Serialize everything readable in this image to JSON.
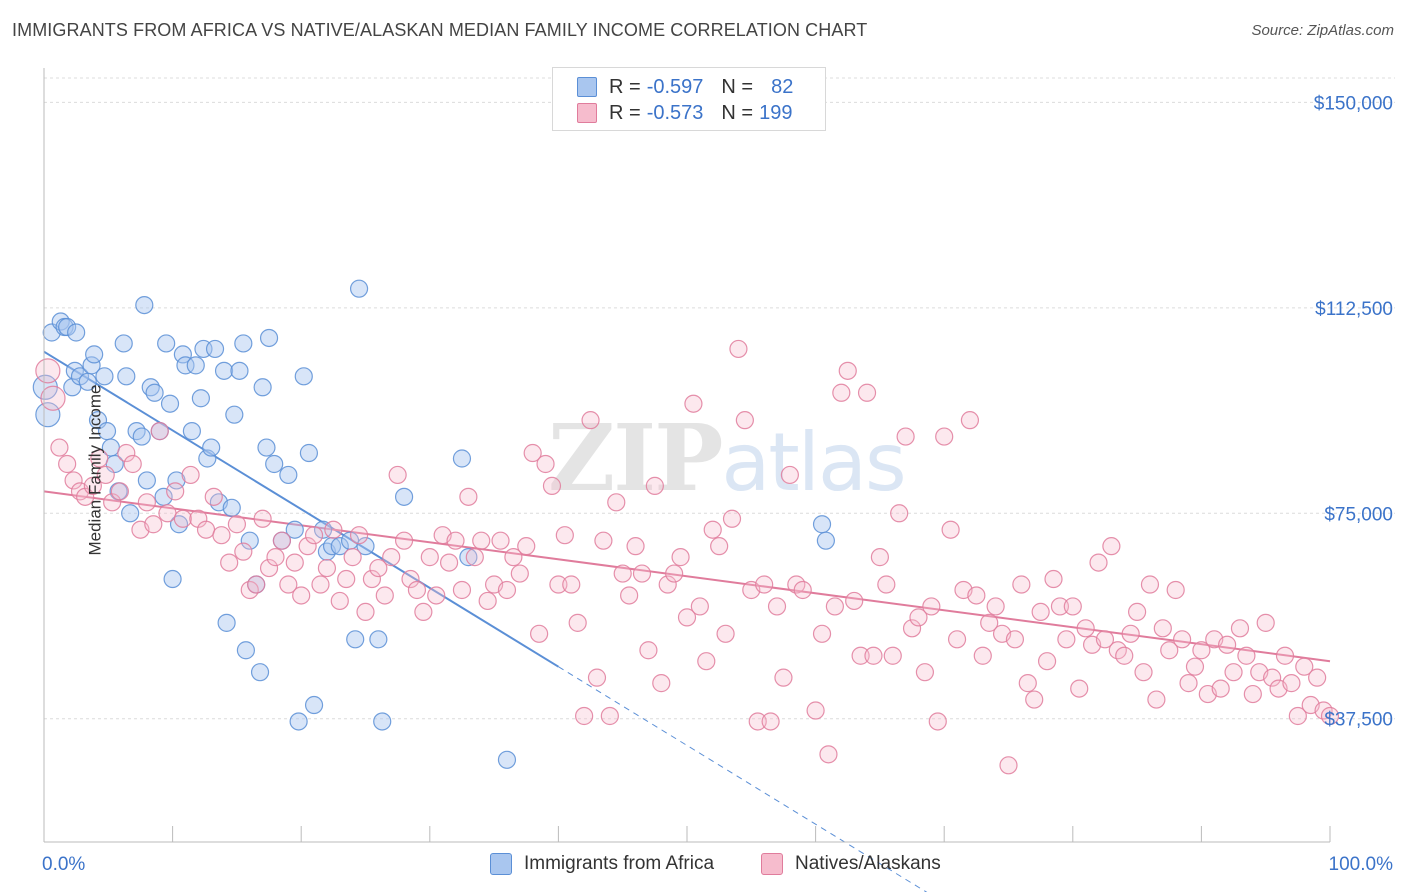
{
  "title": "IMMIGRANTS FROM AFRICA VS NATIVE/ALASKAN MEDIAN FAMILY INCOME CORRELATION CHART",
  "source": "Source: ZipAtlas.com",
  "watermark": "ZIPatlas",
  "legend": {
    "r_label": "R =",
    "n_label": "N =",
    "series": [
      {
        "r": "-0.597",
        "n": "82",
        "color": "#a9c6ef",
        "edge": "#5b8fd6"
      },
      {
        "r": "-0.573",
        "n": "199",
        "color": "#f6bccd",
        "edge": "#e07c9c"
      }
    ]
  },
  "bottom_legend": [
    {
      "label": "Immigrants from Africa",
      "color": "#a9c6ef",
      "edge": "#5b8fd6"
    },
    {
      "label": "Natives/Alaskans",
      "color": "#f6bccd",
      "edge": "#e07c9c"
    }
  ],
  "chart_data": {
    "type": "scatter",
    "xlabel": "",
    "ylabel": "Median Family Income",
    "xlim": [
      0,
      100
    ],
    "ylim": [
      15000,
      155000
    ],
    "x_tick_labels": [
      "0.0%",
      "100.0%"
    ],
    "y_ticks": [
      37500,
      75000,
      112500,
      150000
    ],
    "y_tick_labels": [
      "$37,500",
      "$75,000",
      "$112,500",
      "$150,000"
    ],
    "grid": true,
    "series": [
      {
        "name": "Immigrants from Africa",
        "color": "#5b8fd6",
        "trend": {
          "x0": 0,
          "y0": 104500,
          "x1": 40,
          "y1": 47000,
          "dash_to_x": 74
        },
        "points": [
          [
            0.3,
            93
          ],
          [
            0.6,
            108
          ],
          [
            1.3,
            110
          ],
          [
            1.6,
            109
          ],
          [
            1.8,
            109
          ],
          [
            2.2,
            98
          ],
          [
            2.4,
            101
          ],
          [
            2.5,
            108
          ],
          [
            2.8,
            100
          ],
          [
            3.4,
            99
          ],
          [
            3.7,
            102
          ],
          [
            3.9,
            104
          ],
          [
            4.2,
            92
          ],
          [
            4.7,
            100
          ],
          [
            4.9,
            90
          ],
          [
            5.2,
            87
          ],
          [
            5.5,
            84
          ],
          [
            5.8,
            79
          ],
          [
            6.2,
            106
          ],
          [
            6.4,
            100
          ],
          [
            6.7,
            75
          ],
          [
            7.2,
            90
          ],
          [
            7.6,
            89
          ],
          [
            7.8,
            113
          ],
          [
            8.0,
            81
          ],
          [
            8.3,
            98
          ],
          [
            8.6,
            97
          ],
          [
            9.0,
            90
          ],
          [
            9.3,
            78
          ],
          [
            9.5,
            106
          ],
          [
            9.8,
            95
          ],
          [
            10.0,
            63
          ],
          [
            10.3,
            81
          ],
          [
            10.5,
            73
          ],
          [
            10.8,
            104
          ],
          [
            11.0,
            102
          ],
          [
            11.5,
            90
          ],
          [
            11.8,
            102
          ],
          [
            12.2,
            96
          ],
          [
            12.4,
            105
          ],
          [
            12.7,
            85
          ],
          [
            13.0,
            87
          ],
          [
            13.3,
            105
          ],
          [
            13.6,
            77
          ],
          [
            14.0,
            101
          ],
          [
            14.2,
            55
          ],
          [
            14.6,
            76
          ],
          [
            14.8,
            93
          ],
          [
            15.2,
            101
          ],
          [
            15.5,
            106
          ],
          [
            15.7,
            50
          ],
          [
            16.0,
            70
          ],
          [
            16.5,
            62
          ],
          [
            16.8,
            46
          ],
          [
            17.0,
            98
          ],
          [
            17.3,
            87
          ],
          [
            17.5,
            107
          ],
          [
            17.9,
            84
          ],
          [
            18.5,
            70
          ],
          [
            19.0,
            82
          ],
          [
            19.5,
            72
          ],
          [
            19.8,
            37
          ],
          [
            20.2,
            100
          ],
          [
            20.6,
            86
          ],
          [
            21.0,
            40
          ],
          [
            21.7,
            72
          ],
          [
            22.0,
            68
          ],
          [
            22.4,
            69
          ],
          [
            23.0,
            69
          ],
          [
            23.8,
            70
          ],
          [
            24.2,
            52
          ],
          [
            24.5,
            116
          ],
          [
            25.0,
            69
          ],
          [
            26.0,
            52
          ],
          [
            26.3,
            37
          ],
          [
            28.0,
            78
          ],
          [
            32.5,
            85
          ],
          [
            33.0,
            67
          ],
          [
            36.0,
            30
          ],
          [
            60.5,
            73
          ],
          [
            60.8,
            70
          ],
          [
            0.1,
            98
          ]
        ]
      },
      {
        "name": "Natives/Alaskans",
        "color": "#e07c9c",
        "trend": {
          "x0": 0,
          "y0": 79000,
          "x1": 100,
          "y1": 48000
        },
        "points": [
          [
            0.3,
            101
          ],
          [
            0.7,
            96
          ],
          [
            1.2,
            87
          ],
          [
            1.8,
            84
          ],
          [
            2.3,
            81
          ],
          [
            2.8,
            79
          ],
          [
            3.2,
            78
          ],
          [
            3.8,
            80
          ],
          [
            4.3,
            85
          ],
          [
            4.8,
            82
          ],
          [
            5.3,
            77
          ],
          [
            5.9,
            79
          ],
          [
            6.4,
            86
          ],
          [
            6.9,
            84
          ],
          [
            7.5,
            72
          ],
          [
            8.0,
            77
          ],
          [
            8.5,
            73
          ],
          [
            9.0,
            90
          ],
          [
            9.6,
            75
          ],
          [
            10.2,
            79
          ],
          [
            10.8,
            74
          ],
          [
            11.4,
            82
          ],
          [
            12.0,
            74
          ],
          [
            12.6,
            72
          ],
          [
            13.2,
            78
          ],
          [
            13.8,
            71
          ],
          [
            14.4,
            66
          ],
          [
            15.0,
            73
          ],
          [
            15.5,
            68
          ],
          [
            16.0,
            61
          ],
          [
            16.5,
            62
          ],
          [
            17.0,
            74
          ],
          [
            17.5,
            65
          ],
          [
            18.0,
            67
          ],
          [
            18.5,
            70
          ],
          [
            19.0,
            62
          ],
          [
            19.5,
            66
          ],
          [
            20.0,
            60
          ],
          [
            20.5,
            69
          ],
          [
            21.0,
            71
          ],
          [
            21.5,
            62
          ],
          [
            22.0,
            65
          ],
          [
            22.5,
            72
          ],
          [
            23.0,
            59
          ],
          [
            23.5,
            63
          ],
          [
            24.0,
            67
          ],
          [
            24.5,
            71
          ],
          [
            25.0,
            57
          ],
          [
            25.5,
            63
          ],
          [
            26.0,
            65
          ],
          [
            26.5,
            60
          ],
          [
            27.0,
            67
          ],
          [
            27.5,
            82
          ],
          [
            28.0,
            70
          ],
          [
            28.5,
            63
          ],
          [
            29.0,
            61
          ],
          [
            29.5,
            57
          ],
          [
            30.0,
            67
          ],
          [
            30.5,
            60
          ],
          [
            31.0,
            71
          ],
          [
            31.5,
            66
          ],
          [
            32.0,
            70
          ],
          [
            32.5,
            61
          ],
          [
            33.0,
            78
          ],
          [
            33.5,
            67
          ],
          [
            34.0,
            70
          ],
          [
            34.5,
            59
          ],
          [
            35.0,
            62
          ],
          [
            35.5,
            70
          ],
          [
            36.0,
            61
          ],
          [
            36.5,
            67
          ],
          [
            37.0,
            64
          ],
          [
            37.5,
            69
          ],
          [
            38.0,
            86
          ],
          [
            38.5,
            53
          ],
          [
            39.0,
            84
          ],
          [
            39.5,
            80
          ],
          [
            40.0,
            62
          ],
          [
            40.5,
            71
          ],
          [
            41.0,
            62
          ],
          [
            41.5,
            55
          ],
          [
            42.0,
            38
          ],
          [
            42.5,
            92
          ],
          [
            43.0,
            45
          ],
          [
            43.5,
            70
          ],
          [
            44.0,
            38
          ],
          [
            44.5,
            77
          ],
          [
            45.0,
            64
          ],
          [
            45.5,
            60
          ],
          [
            46.0,
            69
          ],
          [
            46.5,
            64
          ],
          [
            47.0,
            50
          ],
          [
            47.5,
            80
          ],
          [
            48.0,
            44
          ],
          [
            48.5,
            62
          ],
          [
            49.0,
            64
          ],
          [
            49.5,
            67
          ],
          [
            50.0,
            56
          ],
          [
            50.5,
            95
          ],
          [
            51.0,
            58
          ],
          [
            51.5,
            48
          ],
          [
            52.0,
            72
          ],
          [
            52.5,
            69
          ],
          [
            53.0,
            53
          ],
          [
            53.5,
            74
          ],
          [
            54.0,
            105
          ],
          [
            54.5,
            92
          ],
          [
            55.0,
            61
          ],
          [
            55.5,
            37
          ],
          [
            56.0,
            62
          ],
          [
            56.5,
            37
          ],
          [
            57.0,
            58
          ],
          [
            57.5,
            45
          ],
          [
            58.0,
            82
          ],
          [
            58.5,
            62
          ],
          [
            59.0,
            61
          ],
          [
            60.0,
            39
          ],
          [
            60.5,
            53
          ],
          [
            61.0,
            31
          ],
          [
            61.5,
            58
          ],
          [
            62.0,
            97
          ],
          [
            62.5,
            101
          ],
          [
            63.0,
            59
          ],
          [
            63.5,
            49
          ],
          [
            64.0,
            97
          ],
          [
            64.5,
            49
          ],
          [
            65.0,
            67
          ],
          [
            65.5,
            62
          ],
          [
            66.0,
            49
          ],
          [
            66.5,
            75
          ],
          [
            67.0,
            89
          ],
          [
            67.5,
            54
          ],
          [
            68.0,
            56
          ],
          [
            68.5,
            46
          ],
          [
            69.0,
            58
          ],
          [
            69.5,
            37
          ],
          [
            70.0,
            89
          ],
          [
            70.5,
            72
          ],
          [
            71.0,
            52
          ],
          [
            71.5,
            61
          ],
          [
            72.0,
            92
          ],
          [
            72.5,
            60
          ],
          [
            73.0,
            49
          ],
          [
            73.5,
            55
          ],
          [
            74.0,
            58
          ],
          [
            74.5,
            53
          ],
          [
            75.0,
            29
          ],
          [
            75.5,
            52
          ],
          [
            76.0,
            62
          ],
          [
            76.5,
            44
          ],
          [
            77.0,
            41
          ],
          [
            77.5,
            57
          ],
          [
            78.0,
            48
          ],
          [
            78.5,
            63
          ],
          [
            79.0,
            58
          ],
          [
            79.5,
            52
          ],
          [
            80.0,
            58
          ],
          [
            80.5,
            43
          ],
          [
            81.0,
            54
          ],
          [
            81.5,
            51
          ],
          [
            82.0,
            66
          ],
          [
            82.5,
            52
          ],
          [
            83.0,
            69
          ],
          [
            83.5,
            50
          ],
          [
            84.0,
            49
          ],
          [
            84.5,
            53
          ],
          [
            85.0,
            57
          ],
          [
            85.5,
            46
          ],
          [
            86.0,
            62
          ],
          [
            86.5,
            41
          ],
          [
            87.0,
            54
          ],
          [
            87.5,
            50
          ],
          [
            88.0,
            61
          ],
          [
            88.5,
            52
          ],
          [
            89.0,
            44
          ],
          [
            89.5,
            47
          ],
          [
            90.0,
            50
          ],
          [
            90.5,
            42
          ],
          [
            91.0,
            52
          ],
          [
            91.5,
            43
          ],
          [
            92.0,
            51
          ],
          [
            92.5,
            46
          ],
          [
            93.0,
            54
          ],
          [
            93.5,
            49
          ],
          [
            94.0,
            42
          ],
          [
            94.5,
            46
          ],
          [
            95.0,
            55
          ],
          [
            95.5,
            45
          ],
          [
            96.0,
            43
          ],
          [
            96.5,
            49
          ],
          [
            97.0,
            44
          ],
          [
            97.5,
            38
          ],
          [
            98.0,
            47
          ],
          [
            98.5,
            40
          ],
          [
            99.0,
            45
          ],
          [
            99.5,
            39
          ],
          [
            100.0,
            38
          ]
        ]
      }
    ]
  }
}
